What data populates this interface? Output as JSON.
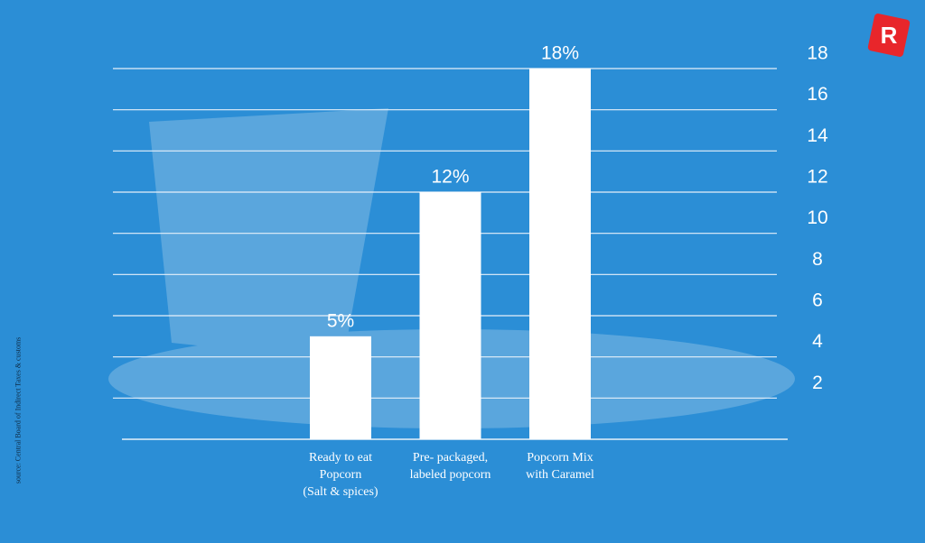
{
  "chart_data": {
    "type": "bar",
    "categories": [
      "Ready to eat\nPopcorn\n(Salt & spices)",
      "Pre- packaged,\nlabeled  popcorn",
      "Popcorn Mix\nwith Caramel"
    ],
    "values": [
      5,
      12,
      18
    ],
    "value_labels": [
      "5%",
      "12%",
      "18%"
    ],
    "color": "#ffffff",
    "ylim": [
      0,
      18
    ],
    "yticks": [
      2,
      4,
      6,
      8,
      10,
      12,
      14,
      16,
      18
    ],
    "grid": true,
    "source": "source: Central Board of Indirect Taxes & customs"
  }
}
